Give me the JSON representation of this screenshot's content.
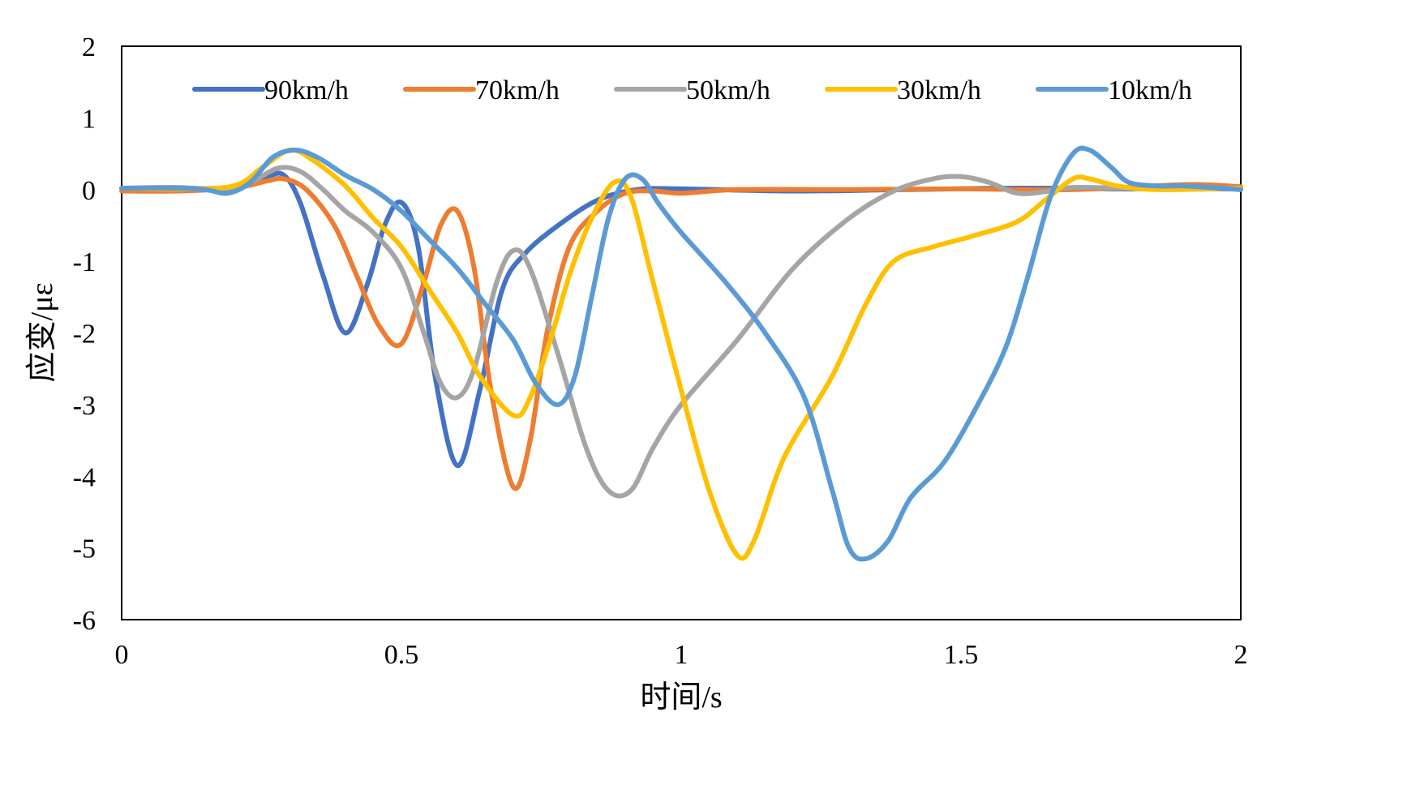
{
  "chart_data": {
    "type": "line",
    "title": "",
    "xlabel": "时间/s",
    "ylabel": "应变/με",
    "xlim": [
      0,
      2
    ],
    "ylim": [
      -6,
      2
    ],
    "x_ticks": [
      "0",
      "0.5",
      "1",
      "1.5",
      "2"
    ],
    "y_ticks": [
      "2",
      "1",
      "0",
      "-1",
      "-2",
      "-3",
      "-4",
      "-5",
      "-6"
    ],
    "grid": false,
    "legend_position": "top",
    "series": [
      {
        "name": "90km/h",
        "color": "#4472C4",
        "points": [
          [
            0,
            0.02
          ],
          [
            0.1,
            0.02
          ],
          [
            0.2,
            0.03
          ],
          [
            0.26,
            0.18
          ],
          [
            0.29,
            0.2
          ],
          [
            0.32,
            -0.2
          ],
          [
            0.36,
            -1.2
          ],
          [
            0.4,
            -2.0
          ],
          [
            0.44,
            -1.3
          ],
          [
            0.47,
            -0.5
          ],
          [
            0.5,
            -0.18
          ],
          [
            0.53,
            -0.8
          ],
          [
            0.56,
            -2.6
          ],
          [
            0.6,
            -3.85
          ],
          [
            0.64,
            -2.8
          ],
          [
            0.68,
            -1.4
          ],
          [
            0.72,
            -0.9
          ],
          [
            0.78,
            -0.5
          ],
          [
            0.85,
            -0.15
          ],
          [
            0.92,
            0.0
          ],
          [
            1.0,
            0.01
          ],
          [
            1.2,
            -0.02
          ],
          [
            1.4,
            0.0
          ],
          [
            1.6,
            0.02
          ],
          [
            1.8,
            0.01
          ],
          [
            2.0,
            0.01
          ]
        ]
      },
      {
        "name": "70km/h",
        "color": "#ED7D31",
        "points": [
          [
            0,
            -0.02
          ],
          [
            0.1,
            -0.02
          ],
          [
            0.2,
            0.02
          ],
          [
            0.26,
            0.12
          ],
          [
            0.29,
            0.15
          ],
          [
            0.33,
            0.0
          ],
          [
            0.38,
            -0.5
          ],
          [
            0.42,
            -1.2
          ],
          [
            0.46,
            -1.9
          ],
          [
            0.5,
            -2.15
          ],
          [
            0.54,
            -1.3
          ],
          [
            0.57,
            -0.5
          ],
          [
            0.6,
            -0.3
          ],
          [
            0.63,
            -1.1
          ],
          [
            0.66,
            -2.8
          ],
          [
            0.7,
            -4.15
          ],
          [
            0.73,
            -3.5
          ],
          [
            0.76,
            -2.0
          ],
          [
            0.8,
            -0.8
          ],
          [
            0.85,
            -0.3
          ],
          [
            0.9,
            -0.05
          ],
          [
            0.95,
            -0.02
          ],
          [
            1.0,
            -0.05
          ],
          [
            1.1,
            0.0
          ],
          [
            1.3,
            0.0
          ],
          [
            1.5,
            0.01
          ],
          [
            1.7,
            0.0
          ],
          [
            1.9,
            0.07
          ],
          [
            2.0,
            0.04
          ]
        ]
      },
      {
        "name": "50km/h",
        "color": "#A5A5A5",
        "points": [
          [
            0,
            0.02
          ],
          [
            0.1,
            0.03
          ],
          [
            0.18,
            0.0
          ],
          [
            0.23,
            0.1
          ],
          [
            0.28,
            0.3
          ],
          [
            0.32,
            0.25
          ],
          [
            0.36,
            0.0
          ],
          [
            0.4,
            -0.3
          ],
          [
            0.45,
            -0.6
          ],
          [
            0.5,
            -1.1
          ],
          [
            0.54,
            -2.0
          ],
          [
            0.57,
            -2.7
          ],
          [
            0.6,
            -2.9
          ],
          [
            0.63,
            -2.5
          ],
          [
            0.67,
            -1.3
          ],
          [
            0.7,
            -0.85
          ],
          [
            0.73,
            -1.1
          ],
          [
            0.78,
            -2.3
          ],
          [
            0.83,
            -3.6
          ],
          [
            0.87,
            -4.2
          ],
          [
            0.91,
            -4.2
          ],
          [
            0.95,
            -3.6
          ],
          [
            1.0,
            -3.0
          ],
          [
            1.1,
            -2.1
          ],
          [
            1.2,
            -1.1
          ],
          [
            1.3,
            -0.4
          ],
          [
            1.38,
            -0.02
          ],
          [
            1.45,
            0.15
          ],
          [
            1.5,
            0.18
          ],
          [
            1.55,
            0.1
          ],
          [
            1.6,
            -0.05
          ],
          [
            1.65,
            -0.03
          ],
          [
            1.7,
            0.03
          ],
          [
            1.8,
            0.02
          ],
          [
            2.0,
            0.02
          ]
        ]
      },
      {
        "name": "30km/h",
        "color": "#FFC000",
        "points": [
          [
            0,
            0.02
          ],
          [
            0.1,
            0.01
          ],
          [
            0.2,
            0.05
          ],
          [
            0.25,
            0.3
          ],
          [
            0.3,
            0.55
          ],
          [
            0.34,
            0.42
          ],
          [
            0.4,
            0.05
          ],
          [
            0.45,
            -0.4
          ],
          [
            0.5,
            -0.8
          ],
          [
            0.55,
            -1.4
          ],
          [
            0.6,
            -2.0
          ],
          [
            0.64,
            -2.6
          ],
          [
            0.7,
            -3.15
          ],
          [
            0.73,
            -2.9
          ],
          [
            0.77,
            -2.0
          ],
          [
            0.8,
            -1.2
          ],
          [
            0.84,
            -0.4
          ],
          [
            0.88,
            0.1
          ],
          [
            0.91,
            -0.1
          ],
          [
            0.95,
            -1.3
          ],
          [
            1.0,
            -2.8
          ],
          [
            1.05,
            -4.2
          ],
          [
            1.1,
            -5.1
          ],
          [
            1.13,
            -4.9
          ],
          [
            1.17,
            -4.0
          ],
          [
            1.2,
            -3.5
          ],
          [
            1.27,
            -2.6
          ],
          [
            1.33,
            -1.6
          ],
          [
            1.38,
            -1.0
          ],
          [
            1.45,
            -0.8
          ],
          [
            1.52,
            -0.65
          ],
          [
            1.6,
            -0.45
          ],
          [
            1.65,
            -0.15
          ],
          [
            1.7,
            0.15
          ],
          [
            1.73,
            0.15
          ],
          [
            1.78,
            0.05
          ],
          [
            1.85,
            0.0
          ],
          [
            2.0,
            0.02
          ]
        ]
      },
      {
        "name": "10km/h",
        "color": "#5B9BD5",
        "points": [
          [
            0,
            0.02
          ],
          [
            0.1,
            0.02
          ],
          [
            0.15,
            0.0
          ],
          [
            0.19,
            -0.05
          ],
          [
            0.23,
            0.1
          ],
          [
            0.27,
            0.45
          ],
          [
            0.31,
            0.55
          ],
          [
            0.35,
            0.45
          ],
          [
            0.4,
            0.2
          ],
          [
            0.45,
            0.0
          ],
          [
            0.5,
            -0.3
          ],
          [
            0.55,
            -0.7
          ],
          [
            0.6,
            -1.1
          ],
          [
            0.65,
            -1.6
          ],
          [
            0.7,
            -2.1
          ],
          [
            0.74,
            -2.7
          ],
          [
            0.78,
            -3.0
          ],
          [
            0.81,
            -2.6
          ],
          [
            0.84,
            -1.5
          ],
          [
            0.87,
            -0.4
          ],
          [
            0.9,
            0.15
          ],
          [
            0.93,
            0.15
          ],
          [
            0.96,
            -0.2
          ],
          [
            1.0,
            -0.6
          ],
          [
            1.08,
            -1.3
          ],
          [
            1.15,
            -2.0
          ],
          [
            1.22,
            -2.9
          ],
          [
            1.27,
            -4.2
          ],
          [
            1.3,
            -5.0
          ],
          [
            1.33,
            -5.15
          ],
          [
            1.37,
            -4.9
          ],
          [
            1.41,
            -4.3
          ],
          [
            1.47,
            -3.8
          ],
          [
            1.53,
            -3.0
          ],
          [
            1.58,
            -2.2
          ],
          [
            1.62,
            -1.2
          ],
          [
            1.66,
            -0.1
          ],
          [
            1.7,
            0.5
          ],
          [
            1.73,
            0.55
          ],
          [
            1.77,
            0.3
          ],
          [
            1.8,
            0.1
          ],
          [
            1.85,
            0.05
          ],
          [
            1.9,
            0.05
          ],
          [
            2.0,
            0.0
          ]
        ]
      }
    ]
  }
}
